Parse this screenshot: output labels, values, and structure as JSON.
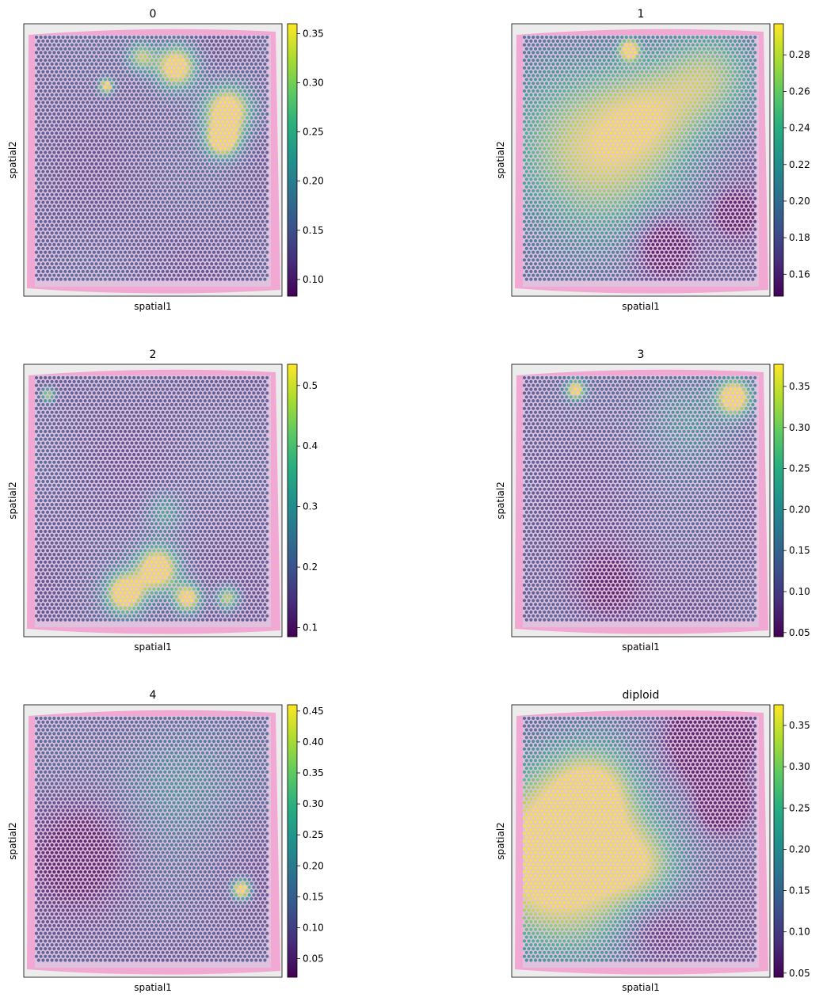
{
  "chart_data": [
    {
      "type": "heatmap",
      "title": "0",
      "xlabel": "spatial1",
      "ylabel": "spatial2",
      "colorbar": {
        "colormap": "viridis",
        "range": [
          0.083,
          0.36
        ],
        "ticks": [
          "0.10",
          "0.15",
          "0.20",
          "0.25",
          "0.30",
          "0.35"
        ]
      },
      "hotspots": [
        {
          "x": 0.6,
          "y": 0.12,
          "r": 0.09,
          "v": 1.0
        },
        {
          "x": 0.82,
          "y": 0.3,
          "r": 0.1,
          "v": 1.0
        },
        {
          "x": 0.8,
          "y": 0.42,
          "r": 0.07,
          "v": 0.95
        },
        {
          "x": 0.45,
          "y": 0.08,
          "r": 0.06,
          "v": 0.6
        },
        {
          "x": 0.3,
          "y": 0.2,
          "r": 0.03,
          "v": 0.9
        }
      ]
    },
    {
      "type": "heatmap",
      "title": "1",
      "xlabel": "spatial1",
      "ylabel": "spatial2",
      "colorbar": {
        "colormap": "viridis",
        "range": [
          0.148,
          0.297
        ],
        "ticks": [
          "0.16",
          "0.18",
          "0.20",
          "0.22",
          "0.24",
          "0.26",
          "0.28"
        ]
      },
      "hotspots": [
        {
          "x": 0.25,
          "y": 0.5,
          "r": 0.35,
          "v": 0.65
        },
        {
          "x": 0.55,
          "y": 0.3,
          "r": 0.25,
          "v": 0.55
        },
        {
          "x": 0.8,
          "y": 0.15,
          "r": 0.2,
          "v": 0.45
        },
        {
          "x": 0.6,
          "y": 0.85,
          "r": 0.12,
          "v": -0.5
        },
        {
          "x": 0.9,
          "y": 0.72,
          "r": 0.08,
          "v": -0.4
        },
        {
          "x": 0.45,
          "y": 0.05,
          "r": 0.04,
          "v": 0.9
        }
      ]
    },
    {
      "type": "heatmap",
      "title": "2",
      "xlabel": "spatial1",
      "ylabel": "spatial2",
      "colorbar": {
        "colormap": "viridis",
        "range": [
          0.085,
          0.535
        ],
        "ticks": [
          "0.1",
          "0.2",
          "0.3",
          "0.4",
          "0.5"
        ]
      },
      "hotspots": [
        {
          "x": 0.38,
          "y": 0.88,
          "r": 0.08,
          "v": 1.0
        },
        {
          "x": 0.52,
          "y": 0.78,
          "r": 0.09,
          "v": 1.0
        },
        {
          "x": 0.65,
          "y": 0.9,
          "r": 0.06,
          "v": 0.9
        },
        {
          "x": 0.82,
          "y": 0.9,
          "r": 0.05,
          "v": 0.7
        },
        {
          "x": 0.05,
          "y": 0.07,
          "r": 0.03,
          "v": 0.6
        },
        {
          "x": 0.55,
          "y": 0.55,
          "r": 0.08,
          "v": 0.35
        }
      ]
    },
    {
      "type": "heatmap",
      "title": "3",
      "xlabel": "spatial1",
      "ylabel": "spatial2",
      "colorbar": {
        "colormap": "viridis",
        "range": [
          0.045,
          0.377
        ],
        "ticks": [
          "0.05",
          "0.10",
          "0.15",
          "0.20",
          "0.25",
          "0.30",
          "0.35"
        ]
      },
      "hotspots": [
        {
          "x": 0.9,
          "y": 0.08,
          "r": 0.07,
          "v": 1.0
        },
        {
          "x": 0.22,
          "y": 0.05,
          "r": 0.04,
          "v": 0.85
        },
        {
          "x": 0.7,
          "y": 0.15,
          "r": 0.2,
          "v": 0.3
        },
        {
          "x": 0.35,
          "y": 0.85,
          "r": 0.15,
          "v": -0.3
        }
      ]
    },
    {
      "type": "heatmap",
      "title": "4",
      "xlabel": "spatial1",
      "ylabel": "spatial2",
      "colorbar": {
        "colormap": "viridis",
        "range": [
          0.02,
          0.46
        ],
        "ticks": [
          "0.05",
          "0.10",
          "0.15",
          "0.20",
          "0.25",
          "0.30",
          "0.35",
          "0.40",
          "0.45"
        ]
      },
      "hotspots": [
        {
          "x": 0.88,
          "y": 0.7,
          "r": 0.04,
          "v": 1.0
        },
        {
          "x": 0.6,
          "y": 0.25,
          "r": 0.25,
          "v": 0.3
        },
        {
          "x": 0.2,
          "y": 0.55,
          "r": 0.2,
          "v": -0.3
        }
      ]
    },
    {
      "type": "heatmap",
      "title": "diploid",
      "xlabel": "spatial1",
      "ylabel": "spatial2",
      "colorbar": {
        "colormap": "viridis",
        "range": [
          0.045,
          0.375
        ],
        "ticks": [
          "0.05",
          "0.10",
          "0.15",
          "0.20",
          "0.25",
          "0.30",
          "0.35"
        ]
      },
      "hotspots": [
        {
          "x": 0.12,
          "y": 0.6,
          "r": 0.35,
          "v": 1.0
        },
        {
          "x": 0.3,
          "y": 0.3,
          "r": 0.2,
          "v": 0.7
        },
        {
          "x": 0.5,
          "y": 0.6,
          "r": 0.18,
          "v": 0.5
        },
        {
          "x": 0.8,
          "y": 0.1,
          "r": 0.15,
          "v": -0.8
        },
        {
          "x": 0.85,
          "y": 0.35,
          "r": 0.1,
          "v": -0.7
        },
        {
          "x": 0.55,
          "y": 0.85,
          "r": 0.15,
          "v": -0.3
        }
      ]
    }
  ]
}
